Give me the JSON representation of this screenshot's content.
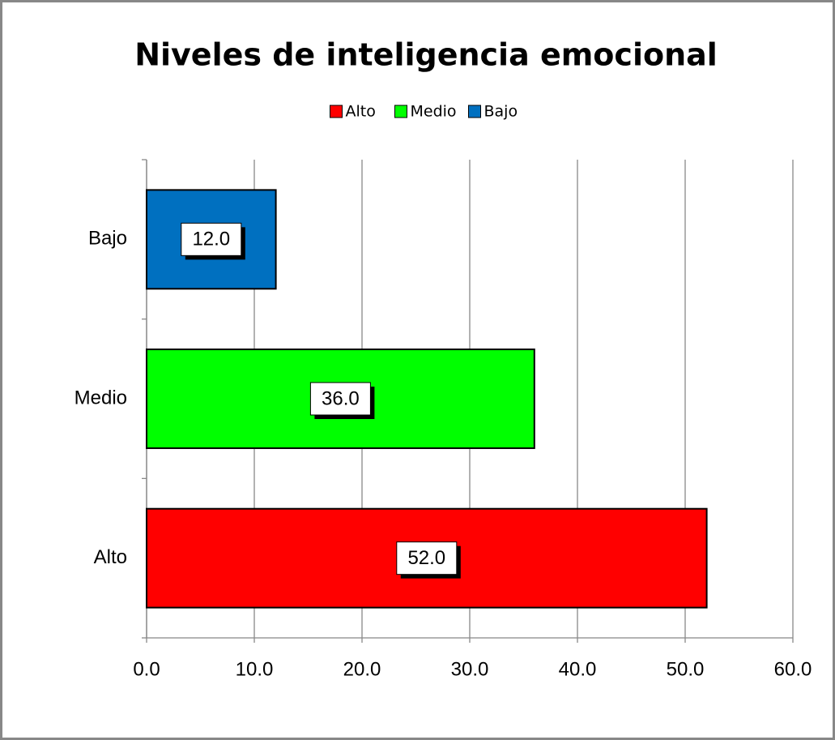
{
  "chart_data": {
    "type": "barh",
    "title": "Niveles de inteligencia emocional",
    "categories": [
      "Alto",
      "Medio",
      "Bajo"
    ],
    "values": [
      52,
      36,
      12
    ],
    "value_labels": [
      "52.0",
      "36.0",
      "12.0"
    ],
    "colors": [
      "#ff0000",
      "#00ff00",
      "#0070c0"
    ],
    "xlim": [
      0,
      60
    ],
    "xticks": [
      {
        "value": 0,
        "label": "0.0"
      },
      {
        "value": 10,
        "label": "10.0"
      },
      {
        "value": 20,
        "label": "20.0"
      },
      {
        "value": 30,
        "label": "30.0"
      },
      {
        "value": 40,
        "label": "40.0"
      },
      {
        "value": 50,
        "label": "50.0"
      },
      {
        "value": 60,
        "label": "60.0"
      }
    ],
    "grid": true,
    "legend": "top"
  }
}
